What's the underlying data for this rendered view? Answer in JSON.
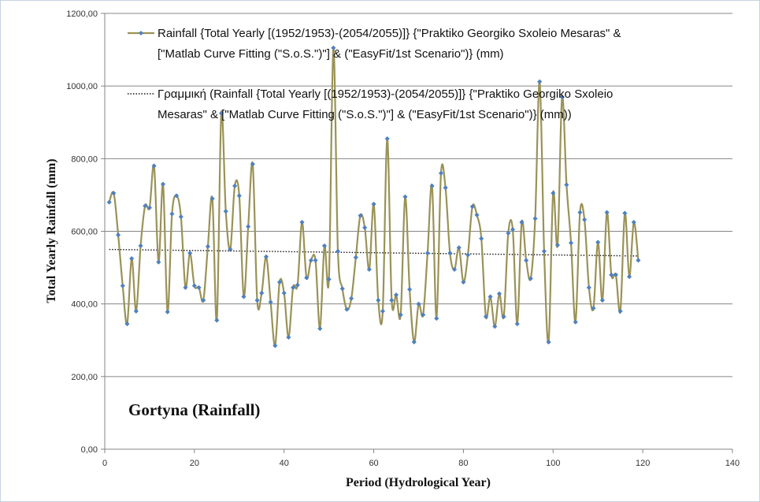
{
  "chart_data": {
    "type": "line",
    "xlabel": "Period (Hydrological Year)",
    "ylabel": "Total Yearly Rainfall (mm)",
    "annotation": "Gortyna (Rainfall)",
    "xlim": [
      0,
      140
    ],
    "ylim": [
      0,
      1200
    ],
    "x_ticks": [
      0,
      20,
      40,
      60,
      80,
      100,
      120,
      140
    ],
    "y_ticks": [
      0,
      200,
      400,
      600,
      800,
      1000,
      1200
    ],
    "y_tick_labels": [
      "0,00",
      "200,00",
      "400,00",
      "600,00",
      "800,00",
      "1000,00",
      "1200,00"
    ],
    "grid": "horizontal",
    "legend_position": "top",
    "series": [
      {
        "name": "Rainfall {Total Yearly [(1952/1953)-(2054/2055)]} {\"Praktiko Georgiko Sxoleio Mesaras\" & [\"Matlab Curve Fitting (\"S.o.S.\")\"] & (\"EasyFit/1st Scenario\")} (mm)",
        "style": "smooth-line-with-markers",
        "color": "#9a9257",
        "marker_color": "#4f81bd",
        "x": [
          1,
          2,
          3,
          4,
          5,
          6,
          7,
          8,
          9,
          10,
          11,
          12,
          13,
          14,
          15,
          16,
          17,
          18,
          19,
          20,
          21,
          22,
          23,
          24,
          25,
          26,
          27,
          28,
          29,
          30,
          31,
          32,
          33,
          34,
          35,
          36,
          37,
          38,
          39,
          40,
          41,
          42,
          43,
          44,
          45,
          46,
          47,
          48,
          49,
          50,
          51,
          52,
          53,
          54,
          55,
          56,
          57,
          58,
          59,
          60,
          61,
          62,
          63,
          64,
          65,
          66,
          67,
          68,
          69,
          70,
          71,
          72,
          73,
          74,
          75,
          76,
          77,
          78,
          79,
          80,
          81,
          82,
          83,
          84,
          85,
          86,
          87,
          88,
          89,
          90,
          91,
          92,
          93,
          94,
          95,
          96,
          97,
          98,
          99,
          100,
          101,
          102,
          103,
          104,
          105,
          106,
          107,
          108,
          109,
          110,
          111,
          112,
          113,
          114,
          115,
          116,
          117,
          118,
          119
        ],
        "y": [
          680,
          705,
          590,
          450,
          345,
          525,
          380,
          560,
          670,
          665,
          780,
          515,
          730,
          378,
          648,
          698,
          640,
          445,
          540,
          450,
          445,
          410,
          558,
          690,
          355,
          925,
          655,
          550,
          725,
          698,
          420,
          613,
          785,
          410,
          430,
          530,
          405,
          285,
          460,
          430,
          308,
          445,
          452,
          625,
          472,
          520,
          520,
          332,
          560,
          468,
          1105,
          545,
          442,
          385,
          415,
          528,
          643,
          610,
          495,
          675,
          410,
          380,
          855,
          410,
          425,
          370,
          695,
          440,
          295,
          400,
          370,
          540,
          725,
          360,
          760,
          720,
          540,
          495,
          555,
          460,
          535,
          668,
          645,
          580,
          365,
          420,
          338,
          428,
          365,
          595,
          605,
          345,
          625,
          520,
          470,
          635,
          1012,
          545,
          295,
          705,
          562,
          970,
          728,
          568,
          350,
          652,
          632,
          445,
          388,
          570,
          410,
          652,
          480,
          480,
          380,
          650,
          475,
          625,
          520
        ]
      },
      {
        "name": "Γραμμική (Rainfall {Total Yearly [(1952/1953)-(2054/2055)]} {\"Praktiko Georgiko Sxoleio Mesaras\" & [\"Matlab Curve Fitting (\"S.o.S.\")\"] & (\"EasyFit/1st Scenario\")} (mm))",
        "style": "dotted-trendline",
        "color": "#111111",
        "x": [
          1,
          119
        ],
        "y": [
          550,
          532
        ]
      }
    ],
    "legend": [
      {
        "lines": [
          "Rainfall {Total Yearly [(1952/1953)-(2054/2055)]} {\"Praktiko Georgiko Sxoleio Mesaras\" &",
          "[\"Matlab Curve Fitting (\"S.o.S.\")\"] & (\"EasyFit/1st Scenario\")} (mm)"
        ]
      },
      {
        "lines": [
          "Γραμμική (Rainfall {Total Yearly [(1952/1953)-(2054/2055)]} {\"Praktiko Georgiko Sxoleio",
          "Mesaras\" & [\"Matlab Curve Fitting (\"S.o.S.\")\"] & (\"EasyFit/1st Scenario\")} (mm))"
        ]
      }
    ]
  }
}
